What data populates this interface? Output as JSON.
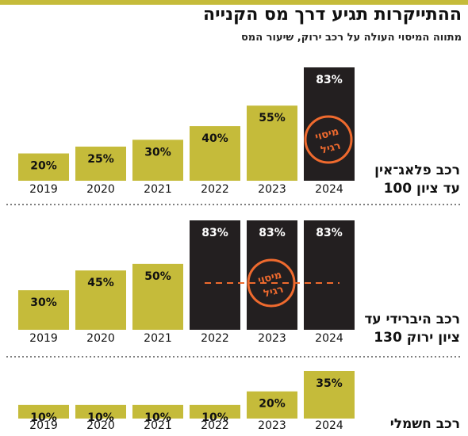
{
  "title": "ההתייקרות תגיע דרך מס הקנייה",
  "subtitle": "מתווה המיסוי העולה על רכב ירוק, שיעור המס",
  "colors": {
    "accent": "#c5bb3a",
    "regular": "#231f20",
    "stamp": "#ef6a2e",
    "text": "#111111",
    "divider": "#555555"
  },
  "stamp_text": [
    "מיסוי",
    "רגיל"
  ],
  "chart_data": [
    {
      "type": "bar",
      "group_label": [
        "רכב פלאג־אין",
        "עד ציון 100"
      ],
      "categories": [
        "2019",
        "2020",
        "2021",
        "2022",
        "2023",
        "2024"
      ],
      "values": [
        20,
        25,
        30,
        40,
        55,
        83
      ],
      "labels": [
        "20%",
        "25%",
        "30%",
        "40%",
        "55%",
        "83%"
      ],
      "regular_tax": [
        false,
        false,
        false,
        false,
        false,
        true
      ],
      "ylim": [
        0,
        83
      ]
    },
    {
      "type": "bar",
      "group_label": [
        "רכב היברידי עד",
        "ציון ירוק 130"
      ],
      "categories": [
        "2019",
        "2020",
        "2021",
        "2022",
        "2023",
        "2024"
      ],
      "values": [
        30,
        45,
        50,
        83,
        83,
        83
      ],
      "labels": [
        "30%",
        "45%",
        "50%",
        "83%",
        "83%",
        "83%"
      ],
      "regular_tax": [
        false,
        false,
        false,
        true,
        true,
        true
      ],
      "ylim": [
        0,
        83
      ]
    },
    {
      "type": "bar",
      "group_label": [
        "רכב חשמלי"
      ],
      "categories": [
        "2019",
        "2020",
        "2021",
        "2022",
        "2023",
        "2024"
      ],
      "values": [
        10,
        10,
        10,
        10,
        20,
        35
      ],
      "labels": [
        "10%",
        "10%",
        "10%",
        "10%",
        "20%",
        "35%"
      ],
      "regular_tax": [
        false,
        false,
        false,
        false,
        false,
        false
      ],
      "ylim": [
        0,
        35
      ]
    }
  ]
}
